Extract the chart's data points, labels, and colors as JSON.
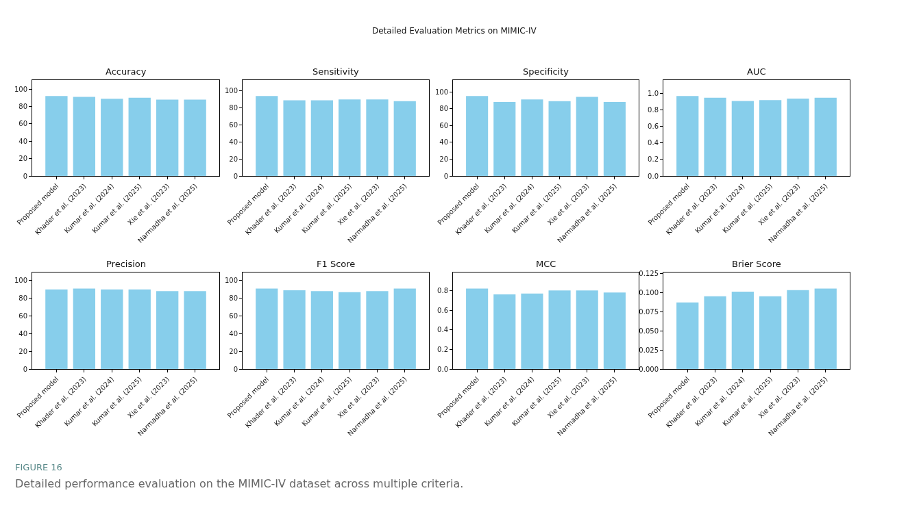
{
  "chart_data": [
    {
      "type": "bar",
      "title": "Accuracy",
      "categories": [
        "Proposed model",
        "Khader et al. (2023)",
        "Kumar et al. (2024)",
        "Kumar et al. (2025)",
        "Xie et al. (2023)",
        "Narmadha et al. (2025)"
      ],
      "values": [
        92,
        91,
        89,
        90,
        88,
        88
      ],
      "color": "#87ceeb",
      "ylim": [
        0,
        110.4
      ],
      "yticks": [
        0,
        20,
        40,
        60,
        80,
        100
      ],
      "grid": false
    },
    {
      "type": "bar",
      "title": "Sensitivity",
      "categories": [
        "Proposed model",
        "Khader et al. (2023)",
        "Kumar et al. (2024)",
        "Kumar et al. (2025)",
        "Xie et al. (2023)",
        "Narmadha et al. (2025)"
      ],
      "values": [
        94,
        89,
        89,
        90,
        90,
        88
      ],
      "color": "#87ceeb",
      "ylim": [
        0,
        112.8
      ],
      "yticks": [
        0,
        20,
        40,
        60,
        80,
        100
      ],
      "grid": false
    },
    {
      "type": "bar",
      "title": "Specificity",
      "categories": [
        "Proposed model",
        "Khader et al. (2023)",
        "Kumar et al. (2024)",
        "Kumar et al. (2025)",
        "Xie et al. (2023)",
        "Narmadha et al. (2025)"
      ],
      "values": [
        95,
        88,
        91,
        89,
        94,
        88
      ],
      "color": "#87ceeb",
      "ylim": [
        0,
        114
      ],
      "yticks": [
        0,
        20,
        40,
        60,
        80,
        100
      ],
      "grid": false
    },
    {
      "type": "bar",
      "title": "AUC",
      "categories": [
        "Proposed model",
        "Khader et al. (2023)",
        "Kumar et al. (2024)",
        "Kumar et al. (2025)",
        "Xie et al. (2023)",
        "Narmadha et al. (2025)"
      ],
      "values": [
        0.97,
        0.95,
        0.91,
        0.92,
        0.94,
        0.95
      ],
      "color": "#87ceeb",
      "ylim": [
        0,
        1.164
      ],
      "yticks": [
        {
          "value": 0,
          "label": "0.0"
        },
        {
          "value": 0.2,
          "label": "0.2"
        },
        {
          "value": 0.4,
          "label": "0.4"
        },
        {
          "value": 0.6,
          "label": "0.6"
        },
        {
          "value": 0.8,
          "label": "0.8"
        },
        {
          "value": 1,
          "label": "1.0"
        }
      ],
      "grid": false
    },
    {
      "type": "bar",
      "title": "Precision",
      "categories": [
        "Proposed model",
        "Khader et al. (2023)",
        "Kumar et al. (2024)",
        "Kumar et al. (2025)",
        "Xie et al. (2023)",
        "Narmadha et al. (2025)"
      ],
      "values": [
        90,
        91,
        90,
        90,
        88,
        88
      ],
      "color": "#87ceeb",
      "ylim": [
        0,
        109.2
      ],
      "yticks": [
        0,
        20,
        40,
        60,
        80,
        100
      ],
      "grid": false
    },
    {
      "type": "bar",
      "title": "F1 Score",
      "categories": [
        "Proposed model",
        "Khader et al. (2023)",
        "Kumar et al. (2024)",
        "Kumar et al. (2025)",
        "Xie et al. (2023)",
        "Narmadha et al. (2025)"
      ],
      "values": [
        91,
        89,
        88,
        87,
        88,
        91
      ],
      "color": "#87ceeb",
      "ylim": [
        0,
        109.2
      ],
      "yticks": [
        0,
        20,
        40,
        60,
        80,
        100
      ],
      "grid": false
    },
    {
      "type": "bar",
      "title": "MCC",
      "categories": [
        "Proposed model",
        "Khader et al. (2023)",
        "Kumar et al. (2024)",
        "Kumar et al. (2025)",
        "Xie et al. (2023)",
        "Narmadha et al. (2025)"
      ],
      "values": [
        0.82,
        0.76,
        0.77,
        0.8,
        0.8,
        0.78
      ],
      "color": "#87ceeb",
      "ylim": [
        0,
        0.984
      ],
      "yticks": [
        {
          "value": 0,
          "label": "0.0"
        },
        {
          "value": 0.2,
          "label": "0.2"
        },
        {
          "value": 0.4,
          "label": "0.4"
        },
        {
          "value": 0.6,
          "label": "0.6"
        },
        {
          "value": 0.8,
          "label": "0.8"
        }
      ],
      "grid": false
    },
    {
      "type": "bar",
      "title": "Brier Score",
      "categories": [
        "Proposed model",
        "Khader et al. (2023)",
        "Kumar et al. (2024)",
        "Kumar et al. (2025)",
        "Xie et al. (2023)",
        "Narmadha et al. (2025)"
      ],
      "values": [
        0.087,
        0.095,
        0.101,
        0.095,
        0.103,
        0.105
      ],
      "color": "#87ceeb",
      "ylim": [
        0,
        0.126
      ],
      "yticks": [
        {
          "value": 0,
          "label": "0.000"
        },
        {
          "value": 0.025,
          "label": "0.025"
        },
        {
          "value": 0.05,
          "label": "0.050"
        },
        {
          "value": 0.075,
          "label": "0.075"
        },
        {
          "value": 0.1,
          "label": "0.100"
        },
        {
          "value": 0.125,
          "label": "0.125"
        }
      ],
      "grid": false
    },
    {
      "type": "other",
      "title": "Detailed Evaluation Metrics on MIMIC-IV",
      "annotations": [
        "FIGURE 16",
        "Detailed performance evaluation on the MIMIC-IV dataset across multiple criteria."
      ]
    }
  ]
}
